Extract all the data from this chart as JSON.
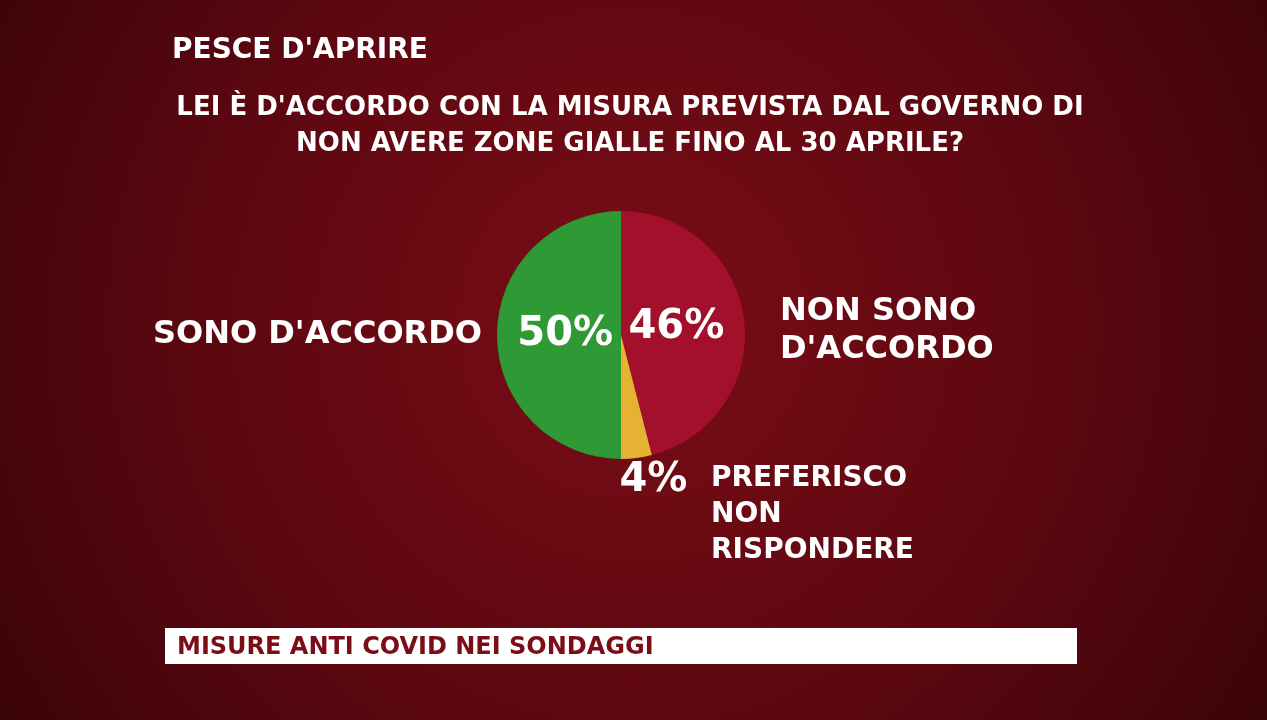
{
  "chart_data": {
    "type": "pie",
    "title": "LEI È D'ACCORDO CON LA MISURA PREVISTA DAL GOVERNO DI NON AVERE ZONE GIALLE FINO AL 30 APRILE?",
    "categories": [
      "NON SONO D'ACCORDO",
      "PREFERISCO NON RISPONDERE",
      "SONO D'ACCORDO"
    ],
    "values": [
      46,
      4,
      50
    ],
    "colors": [
      "#a3102c",
      "#e6b234",
      "#2f9a35"
    ],
    "value_labels": [
      "46%",
      "4%",
      "50%"
    ],
    "legend": false,
    "annotations": [
      "PESCE D'APRIRE",
      "MISURE ANTI COVID NEI SONDAGGI"
    ]
  }
}
